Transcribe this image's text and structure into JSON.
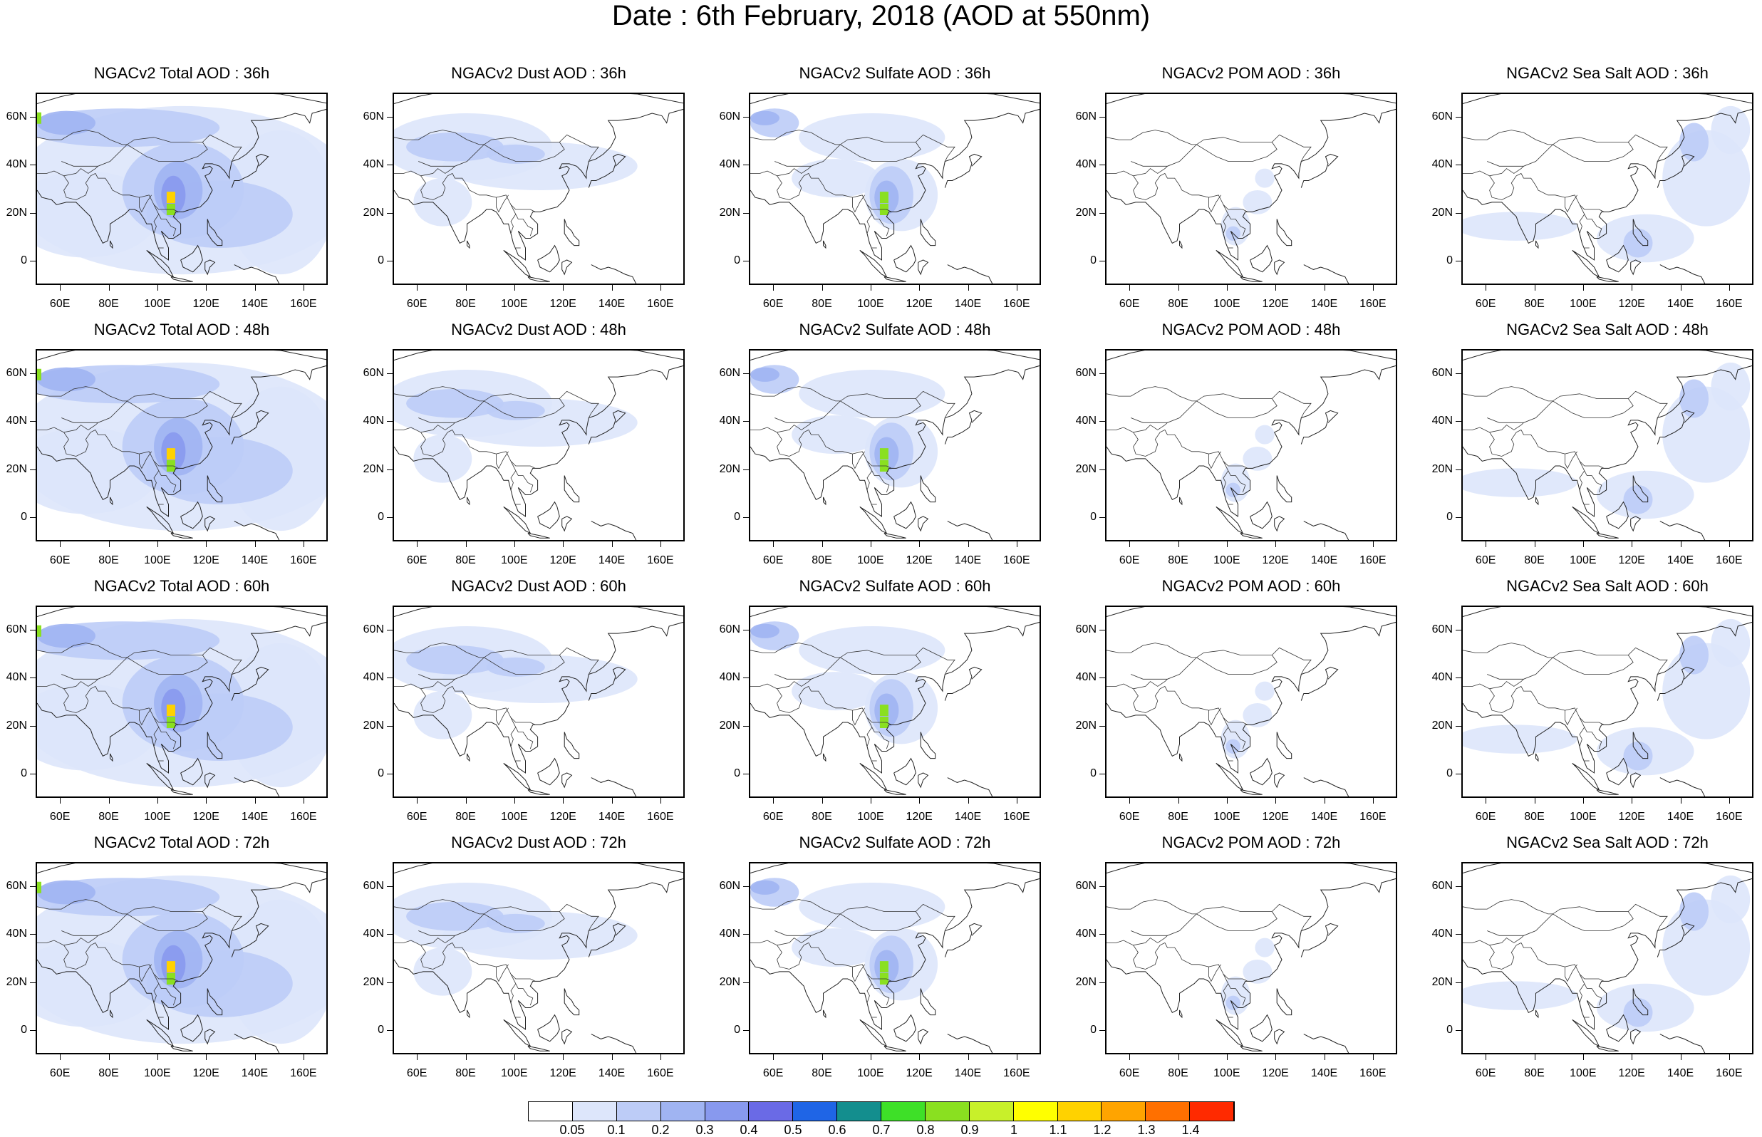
{
  "title": "Date : 6th February, 2018 (AOD at 550nm)",
  "chart_data": {
    "type": "heatmap",
    "rows": [
      "36h",
      "48h",
      "60h",
      "72h"
    ],
    "columns": [
      "Total AOD",
      "Dust AOD",
      "Sulfate AOD",
      "POM AOD",
      "Sea Salt AOD"
    ],
    "panel_titles": [
      [
        "NGACv2 Total AOD : 36h",
        "NGACv2 Dust AOD : 36h",
        "NGACv2 Sulfate AOD : 36h",
        "NGACv2 POM AOD : 36h",
        "NGACv2 Sea Salt AOD : 36h"
      ],
      [
        "NGACv2 Total AOD : 48h",
        "NGACv2 Dust AOD : 48h",
        "NGACv2 Sulfate AOD : 48h",
        "NGACv2 POM AOD : 48h",
        "NGACv2 Sea Salt AOD : 48h"
      ],
      [
        "NGACv2 Total AOD : 60h",
        "NGACv2 Dust AOD : 60h",
        "NGACv2 Sulfate AOD : 60h",
        "NGACv2 POM AOD : 60h",
        "NGACv2 Sea Salt AOD : 60h"
      ],
      [
        "NGACv2 Total AOD : 72h",
        "NGACv2 Dust AOD : 72h",
        "NGACv2 Sulfate AOD : 72h",
        "NGACv2 POM AOD : 72h",
        "NGACv2 Sea Salt  AOD : 72h"
      ]
    ],
    "x_ticks": [
      "60E",
      "80E",
      "100E",
      "120E",
      "140E",
      "160E"
    ],
    "x_tick_values": [
      60,
      80,
      100,
      120,
      140,
      160
    ],
    "y_ticks": [
      "60N",
      "40N",
      "20N",
      "0"
    ],
    "y_tick_values": [
      60,
      40,
      20,
      0
    ],
    "xlim": [
      50,
      170
    ],
    "ylim": [
      -10,
      70
    ],
    "colorbar": {
      "labels": [
        "0.05",
        "0.1",
        "0.2",
        "0.3",
        "0.4",
        "0.5",
        "0.6",
        "0.7",
        "0.8",
        "0.9",
        "1",
        "1.1",
        "1.2",
        "1.3",
        "1.4"
      ],
      "colors": [
        "#ffffff",
        "#dde6fb",
        "#bdccf7",
        "#a0b4f2",
        "#8899ee",
        "#6a6ae6",
        "#1f65e6",
        "#138e8e",
        "#3ee028",
        "#8ae020",
        "#c8f02a",
        "#ffff00",
        "#ffd200",
        "#ffa400",
        "#ff7000",
        "#ff2a00"
      ]
    },
    "hotspots": {
      "total": [
        {
          "lon": 105,
          "lat": 27,
          "value": 1.1
        },
        {
          "lon": 105,
          "lat": 22,
          "value": 0.8
        },
        {
          "lon": 50,
          "lat": 60,
          "value": 0.8
        }
      ],
      "dust": [],
      "sulfate": [
        {
          "lon": 105,
          "lat": 27,
          "value": 0.8
        },
        {
          "lon": 105,
          "lat": 22,
          "value": 0.8
        }
      ],
      "pom": [],
      "seasalt": []
    },
    "grid": false
  }
}
